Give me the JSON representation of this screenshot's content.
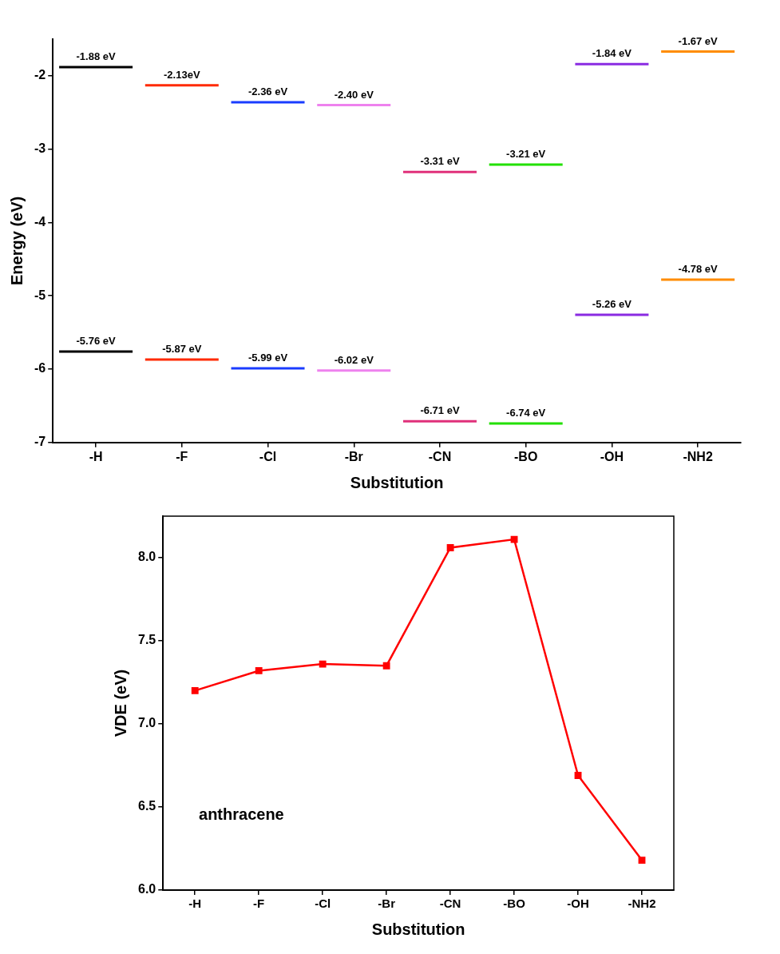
{
  "chart_data": [
    {
      "type": "levels",
      "categories": [
        "-H",
        "-F",
        "-Cl",
        "-Br",
        "-CN",
        "-BO",
        "-OH",
        "-NH2"
      ],
      "series": [
        {
          "values": [
            -1.88,
            -2.13,
            -2.36,
            -2.4,
            -3.31,
            -3.21,
            -1.84,
            -1.67
          ],
          "value_labels": [
            "-1.88 eV",
            "-2.13eV",
            "-2.36 eV",
            "-2.40 eV",
            "-3.31 eV",
            "-3.21 eV",
            "-1.84 eV",
            "-1.67 eV"
          ]
        },
        {
          "values": [
            -5.76,
            -5.87,
            -5.99,
            -6.02,
            -6.71,
            -6.74,
            -5.26,
            -4.78
          ],
          "value_labels": [
            "-5.76 eV",
            "-5.87 eV",
            "-5.99 eV",
            "-6.02 eV",
            "-6.71 eV",
            "-6.74 eV",
            "-5.26 eV",
            "-4.78 eV"
          ]
        }
      ],
      "colors": [
        "#000000",
        "#ff2a00",
        "#1a3cff",
        "#ee82ee",
        "#e0307a",
        "#22e000",
        "#8a2be2",
        "#ff8c00"
      ],
      "marker": "line",
      "data_labels": true,
      "x_label": "Substitution",
      "y_label": "Energy (eV)",
      "ylim": [
        -7,
        -1.5
      ],
      "yticks": [
        -7,
        -6,
        -5,
        -4,
        -3,
        -2
      ],
      "grid": false
    },
    {
      "type": "line",
      "categories": [
        "-H",
        "-F",
        "-Cl",
        "-Br",
        "-CN",
        "-BO",
        "-OH",
        "-NH2"
      ],
      "values": [
        7.2,
        7.32,
        7.36,
        7.35,
        8.06,
        8.11,
        6.69,
        6.18
      ],
      "color": "#ff0000",
      "marker": "square",
      "line_style": "solid",
      "annotation": "anthracene",
      "x_label": "Substitution",
      "y_label": "VDE (eV)",
      "ylim": [
        6.0,
        8.25
      ],
      "yticks": [
        {
          "value": 6.0,
          "label": "6.0"
        },
        6.5,
        {
          "value": 7.0,
          "label": "7.0"
        },
        7.5,
        {
          "value": 8.0,
          "label": "8.0"
        }
      ],
      "grid": false
    }
  ]
}
